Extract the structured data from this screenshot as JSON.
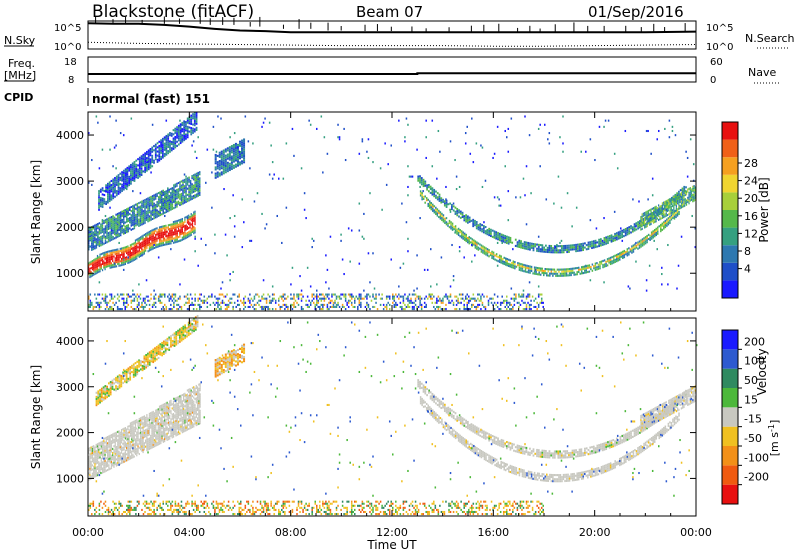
{
  "header": {
    "station": "Blackstone (fitACF)",
    "beam": "Beam 07",
    "date": "01/Sep/2016"
  },
  "chart_data": [
    {
      "type": "line",
      "panel": "noise",
      "left_label": "N.Sky",
      "right_label": "N.Search",
      "left_ticks": [
        "10^5",
        "10^0"
      ],
      "right_ticks": [
        "10^5",
        "10^0"
      ],
      "series": [
        {
          "name": "N.Sky",
          "style": "solid",
          "x": [
            0,
            1,
            2,
            3,
            4,
            5,
            6,
            7,
            8,
            10,
            12,
            14,
            16,
            18,
            20,
            22,
            24
          ],
          "values": [
            4.6,
            4.5,
            4.5,
            4.3,
            4.0,
            3.6,
            3.3,
            3.2,
            3.0,
            3.0,
            3.0,
            3.0,
            3.0,
            3.0,
            3.0,
            3.0,
            3.1
          ]
        },
        {
          "name": "N.Search",
          "style": "dotted",
          "x": [
            0,
            2,
            4,
            6,
            8,
            10,
            12,
            14,
            16,
            18,
            20,
            22,
            24
          ],
          "values": [
            1.2,
            1.0,
            0.9,
            0.8,
            0.7,
            0.6,
            0.6,
            0.6,
            0.5,
            0.5,
            0.6,
            0.7,
            0.8
          ]
        }
      ]
    },
    {
      "type": "line",
      "panel": "frequency",
      "left_label_1": "Freq.",
      "left_label_2": "[MHz]",
      "right_label": "Nave",
      "left_ticks": [
        "18",
        "8"
      ],
      "right_ticks": [
        "60",
        "0"
      ],
      "series": [
        {
          "name": "Freq",
          "x": [
            0,
            13,
            13,
            24
          ],
          "values": [
            10.6,
            10.6,
            11.0,
            11.0
          ]
        }
      ]
    },
    {
      "type": "text",
      "panel": "cpid",
      "label": "CPID",
      "value": "normal (fast) 151"
    },
    {
      "type": "heatmap",
      "panel": "power",
      "ylabel": "Slant Range [km]",
      "yticks": [
        1000,
        2000,
        3000,
        4000
      ],
      "ylim": [
        180,
        4500
      ],
      "xlim": [
        0,
        24
      ],
      "colorbar_label": "Power [dB]",
      "colorbar_ticks": [
        "4",
        "8",
        "12",
        "16",
        "20",
        "24",
        "28"
      ],
      "colorbar_colors": [
        "#1a1aff",
        "#1f4fc8",
        "#2d78b0",
        "#35a080",
        "#55b84a",
        "#a8d03a",
        "#f0d530",
        "#f5a020",
        "#f06018",
        "#e81010"
      ]
    },
    {
      "type": "heatmap",
      "panel": "velocity",
      "ylabel": "Slant Range [km]",
      "yticks": [
        1000,
        2000,
        3000,
        4000
      ],
      "ylim": [
        180,
        4500
      ],
      "xlim": [
        0,
        24
      ],
      "xticks": [
        "00:00",
        "04:00",
        "08:00",
        "12:00",
        "16:00",
        "20:00",
        "00:00"
      ],
      "xlabel": "Time UT",
      "colorbar_label": "Velocity",
      "colorbar_unit": "[m s",
      "colorbar_unit_exp": "-1",
      "colorbar_unit_end": "]",
      "colorbar_ticks": [
        "200",
        "100",
        "50",
        "15",
        "-15",
        "-50",
        "-100",
        "-200"
      ],
      "colorbar_colors": [
        "#1a1aff",
        "#2d5ad0",
        "#2f8a60",
        "#4cb83a",
        "#c8c8c0",
        "#f0c020",
        "#f39018",
        "#f05a10",
        "#e81010"
      ]
    }
  ]
}
